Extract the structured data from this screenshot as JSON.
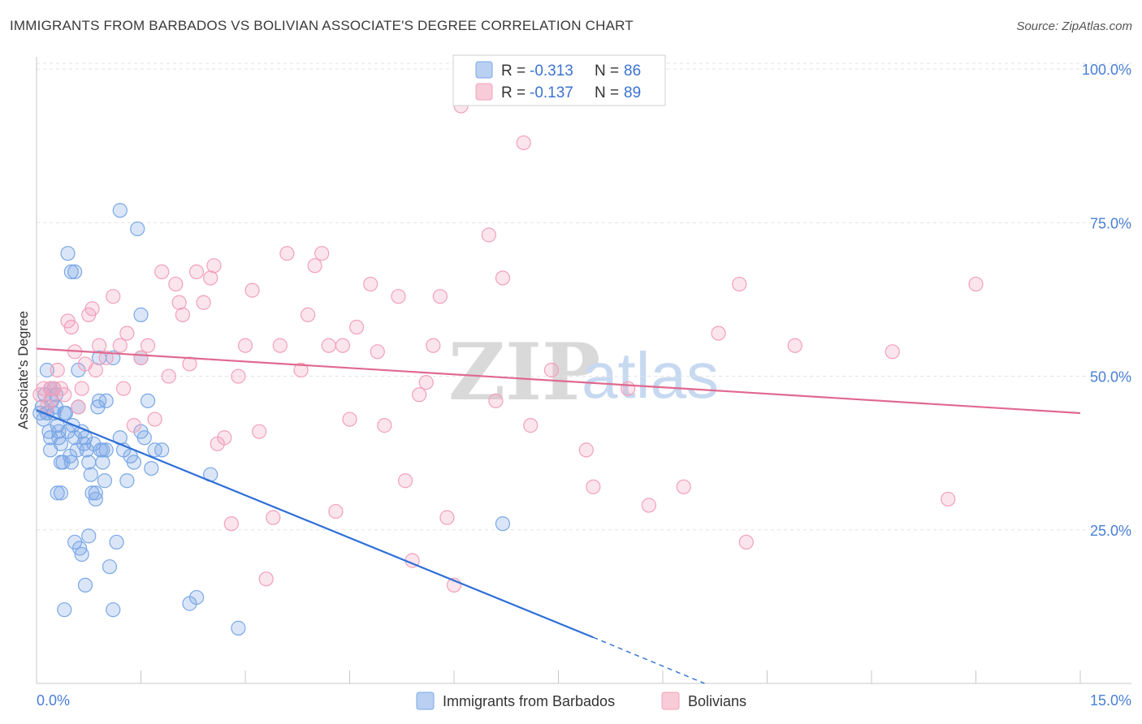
{
  "title": "IMMIGRANTS FROM BARBADOS VS BOLIVIAN ASSOCIATE'S DEGREE CORRELATION CHART",
  "source": "Source: ZipAtlas.com",
  "watermark": {
    "zip": "ZIP",
    "atlas": "atlas"
  },
  "chart_data": {
    "type": "scatter",
    "title": "IMMIGRANTS FROM BARBADOS VS BOLIVIAN ASSOCIATE'S DEGREE CORRELATION CHART",
    "xlabel": "",
    "ylabel": "Associate's Degree",
    "xlim": [
      0,
      15
    ],
    "ylim": [
      0,
      102
    ],
    "x_tick_labels": [
      "0.0%",
      "15.0%"
    ],
    "y_ticks": [
      25,
      50,
      75,
      100
    ],
    "y_tick_labels": [
      "25.0%",
      "50.0%",
      "75.0%",
      "100.0%"
    ],
    "legend": [
      {
        "name": "Immigrants from Barbados",
        "R_label": "R =",
        "R": "-0.313",
        "N_label": "N =",
        "N": "86",
        "color": "#7aa7e6"
      },
      {
        "name": "Bolivians",
        "R_label": "R =",
        "R": "-0.137",
        "N_label": "N =",
        "N": "89",
        "color": "#f2a0ba"
      }
    ],
    "series": [
      {
        "name": "Immigrants from Barbados",
        "color": "#7aa7e6",
        "trend": {
          "x0": 0.0,
          "y0": 44.5,
          "x1": 8.0,
          "y1": 7.5,
          "dash_to_x": 9.6,
          "dash_to_y": 0.0,
          "color": "#2e6fd6"
        },
        "points": [
          [
            0.05,
            44
          ],
          [
            0.08,
            45
          ],
          [
            0.1,
            43
          ],
          [
            0.12,
            47
          ],
          [
            0.15,
            44
          ],
          [
            0.18,
            41
          ],
          [
            0.2,
            40
          ],
          [
            0.22,
            46
          ],
          [
            0.25,
            48
          ],
          [
            0.28,
            45
          ],
          [
            0.3,
            42
          ],
          [
            0.32,
            41
          ],
          [
            0.35,
            39
          ],
          [
            0.38,
            36
          ],
          [
            0.4,
            44
          ],
          [
            0.42,
            44
          ],
          [
            0.45,
            41
          ],
          [
            0.48,
            37
          ],
          [
            0.5,
            36
          ],
          [
            0.52,
            42
          ],
          [
            0.55,
            40
          ],
          [
            0.58,
            38
          ],
          [
            0.6,
            45
          ],
          [
            0.62,
            22
          ],
          [
            0.65,
            41
          ],
          [
            0.68,
            39
          ],
          [
            0.7,
            40
          ],
          [
            0.72,
            38
          ],
          [
            0.75,
            36
          ],
          [
            0.78,
            34
          ],
          [
            0.8,
            31
          ],
          [
            0.82,
            39
          ],
          [
            0.85,
            31
          ],
          [
            0.88,
            45
          ],
          [
            0.9,
            46
          ],
          [
            0.92,
            38
          ],
          [
            0.95,
            36
          ],
          [
            0.98,
            33
          ],
          [
            1.0,
            38
          ],
          [
            1.05,
            19
          ],
          [
            1.1,
            12
          ],
          [
            1.15,
            23
          ],
          [
            1.2,
            40
          ],
          [
            1.25,
            38
          ],
          [
            1.3,
            33
          ],
          [
            1.35,
            37
          ],
          [
            1.4,
            36
          ],
          [
            1.5,
            41
          ],
          [
            1.55,
            40
          ],
          [
            1.6,
            46
          ],
          [
            0.3,
            31
          ],
          [
            0.35,
            31
          ],
          [
            0.4,
            12
          ],
          [
            0.5,
            67
          ],
          [
            0.55,
            67
          ],
          [
            0.45,
            70
          ],
          [
            0.7,
            16
          ],
          [
            0.75,
            24
          ],
          [
            0.15,
            51
          ],
          [
            0.2,
            48
          ],
          [
            0.25,
            44
          ],
          [
            0.28,
            47
          ],
          [
            0.32,
            40
          ],
          [
            0.85,
            30
          ],
          [
            0.95,
            38
          ],
          [
            1.1,
            53
          ],
          [
            1.5,
            53
          ],
          [
            1.2,
            77
          ],
          [
            1.45,
            74
          ],
          [
            1.5,
            60
          ],
          [
            1.7,
            38
          ],
          [
            1.8,
            38
          ],
          [
            2.2,
            13
          ],
          [
            2.3,
            14
          ],
          [
            2.5,
            34
          ],
          [
            2.9,
            9
          ],
          [
            6.7,
            26
          ],
          [
            0.65,
            21
          ],
          [
            0.55,
            23
          ],
          [
            0.6,
            51
          ],
          [
            0.9,
            53
          ],
          [
            0.2,
            38
          ],
          [
            0.35,
            36
          ],
          [
            0.15,
            44
          ],
          [
            1.0,
            46
          ],
          [
            1.65,
            35
          ]
        ]
      },
      {
        "name": "Bolivians",
        "color": "#f2a0ba",
        "trend": {
          "x0": 0.0,
          "y0": 54.5,
          "x1": 15.0,
          "y1": 44.0,
          "color": "#e0698f"
        },
        "points": [
          [
            0.05,
            47
          ],
          [
            0.1,
            48
          ],
          [
            0.15,
            45
          ],
          [
            0.2,
            46
          ],
          [
            0.25,
            48
          ],
          [
            0.3,
            51
          ],
          [
            0.35,
            48
          ],
          [
            0.4,
            47
          ],
          [
            0.45,
            59
          ],
          [
            0.5,
            58
          ],
          [
            0.55,
            54
          ],
          [
            0.6,
            45
          ],
          [
            0.7,
            52
          ],
          [
            0.75,
            60
          ],
          [
            0.8,
            61
          ],
          [
            0.9,
            55
          ],
          [
            1.0,
            53
          ],
          [
            1.1,
            63
          ],
          [
            1.2,
            55
          ],
          [
            1.3,
            57
          ],
          [
            1.4,
            42
          ],
          [
            1.5,
            53
          ],
          [
            1.6,
            55
          ],
          [
            1.7,
            43
          ],
          [
            1.8,
            67
          ],
          [
            1.9,
            50
          ],
          [
            2.0,
            65
          ],
          [
            2.05,
            62
          ],
          [
            2.1,
            60
          ],
          [
            2.2,
            52
          ],
          [
            2.3,
            67
          ],
          [
            2.4,
            62
          ],
          [
            2.5,
            66
          ],
          [
            2.55,
            68
          ],
          [
            2.6,
            39
          ],
          [
            2.7,
            40
          ],
          [
            2.8,
            26
          ],
          [
            2.9,
            50
          ],
          [
            3.0,
            55
          ],
          [
            3.1,
            64
          ],
          [
            3.2,
            41
          ],
          [
            3.3,
            17
          ],
          [
            3.4,
            27
          ],
          [
            3.5,
            55
          ],
          [
            3.6,
            70
          ],
          [
            3.8,
            51
          ],
          [
            3.9,
            60
          ],
          [
            4.0,
            68
          ],
          [
            4.1,
            70
          ],
          [
            4.2,
            55
          ],
          [
            4.3,
            28
          ],
          [
            4.4,
            55
          ],
          [
            4.5,
            43
          ],
          [
            4.6,
            58
          ],
          [
            4.8,
            65
          ],
          [
            4.9,
            54
          ],
          [
            5.0,
            42
          ],
          [
            5.2,
            63
          ],
          [
            5.3,
            33
          ],
          [
            5.4,
            20
          ],
          [
            5.5,
            47
          ],
          [
            5.6,
            49
          ],
          [
            5.7,
            55
          ],
          [
            5.8,
            63
          ],
          [
            5.9,
            27
          ],
          [
            6.0,
            16
          ],
          [
            6.1,
            94
          ],
          [
            6.5,
            73
          ],
          [
            6.6,
            46
          ],
          [
            6.7,
            66
          ],
          [
            7.0,
            88
          ],
          [
            7.1,
            42
          ],
          [
            7.4,
            51
          ],
          [
            7.9,
            38
          ],
          [
            8.0,
            32
          ],
          [
            8.5,
            48
          ],
          [
            8.8,
            29
          ],
          [
            9.3,
            32
          ],
          [
            9.8,
            57
          ],
          [
            10.1,
            65
          ],
          [
            10.2,
            23
          ],
          [
            10.9,
            55
          ],
          [
            12.3,
            54
          ],
          [
            13.1,
            30
          ],
          [
            13.5,
            65
          ],
          [
            0.85,
            51
          ],
          [
            1.25,
            48
          ],
          [
            0.2,
            48
          ],
          [
            0.65,
            48
          ]
        ]
      }
    ]
  }
}
